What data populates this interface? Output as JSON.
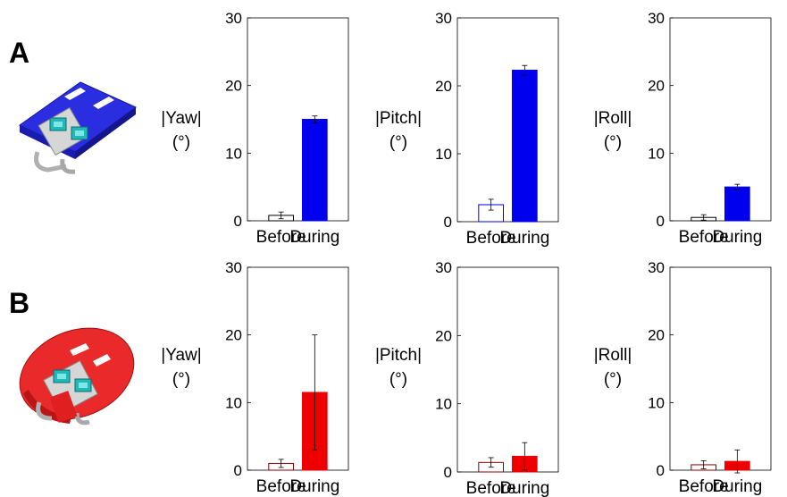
{
  "panels": [
    {
      "letter": "A",
      "color": "#0000ee"
    },
    {
      "letter": "B",
      "color": "#ee0000"
    }
  ],
  "chart_data": [
    {
      "type": "bar",
      "panel": "A",
      "ylabel": "|Yaw|",
      "yunit": "(°)",
      "categories": [
        "Before",
        "During"
      ],
      "values": [
        0.8,
        15.0
      ],
      "errors": [
        0.5,
        0.5
      ],
      "fill": [
        "none",
        "#0000ee"
      ],
      "edge": "#000000",
      "ylim": [
        0,
        30
      ],
      "yticks": [
        0,
        10,
        20,
        30
      ],
      "grid": false
    },
    {
      "type": "bar",
      "panel": "A",
      "ylabel": "|Pitch|",
      "yunit": "(°)",
      "categories": [
        "Before",
        "During"
      ],
      "values": [
        2.5,
        22.3
      ],
      "errors": [
        0.8,
        0.7
      ],
      "fill": [
        "none",
        "#0000ee"
      ],
      "edge": "#0000ee",
      "ylim": [
        0,
        30
      ],
      "yticks": [
        0,
        10,
        20,
        30
      ],
      "grid": false
    },
    {
      "type": "bar",
      "panel": "A",
      "ylabel": "|Roll|",
      "yunit": "(°)",
      "categories": [
        "Before",
        "During"
      ],
      "values": [
        0.5,
        5.0
      ],
      "errors": [
        0.4,
        0.4
      ],
      "fill": [
        "none",
        "#0000ee"
      ],
      "edge": "#000000",
      "ylim": [
        0,
        30
      ],
      "yticks": [
        0,
        10,
        20,
        30
      ],
      "grid": false
    },
    {
      "type": "bar",
      "panel": "B",
      "ylabel": "|Yaw|",
      "yunit": "(°)",
      "categories": [
        "Before",
        "During"
      ],
      "values": [
        1.0,
        11.5
      ],
      "errors": [
        0.6,
        8.5
      ],
      "fill": [
        "none",
        "#ee0000"
      ],
      "edge": "#8b0000",
      "ylim": [
        0,
        30
      ],
      "yticks": [
        0,
        10,
        20,
        30
      ],
      "grid": false
    },
    {
      "type": "bar",
      "panel": "B",
      "ylabel": "|Pitch|",
      "yunit": "(°)",
      "categories": [
        "Before",
        "During"
      ],
      "values": [
        1.4,
        2.3
      ],
      "errors": [
        0.7,
        2.0
      ],
      "fill": [
        "none",
        "#ee0000"
      ],
      "edge": "#8b0000",
      "ylim": [
        0,
        30
      ],
      "yticks": [
        0,
        10,
        20,
        30
      ],
      "grid": false
    },
    {
      "type": "bar",
      "panel": "B",
      "ylabel": "|Roll|",
      "yunit": "(°)",
      "categories": [
        "Before",
        "During"
      ],
      "values": [
        0.8,
        1.3
      ],
      "errors": [
        0.6,
        1.7
      ],
      "fill": [
        "none",
        "#ee0000"
      ],
      "edge": "#8b0000",
      "ylim": [
        0,
        30
      ],
      "yticks": [
        0,
        10,
        20,
        30
      ],
      "grid": false
    }
  ]
}
